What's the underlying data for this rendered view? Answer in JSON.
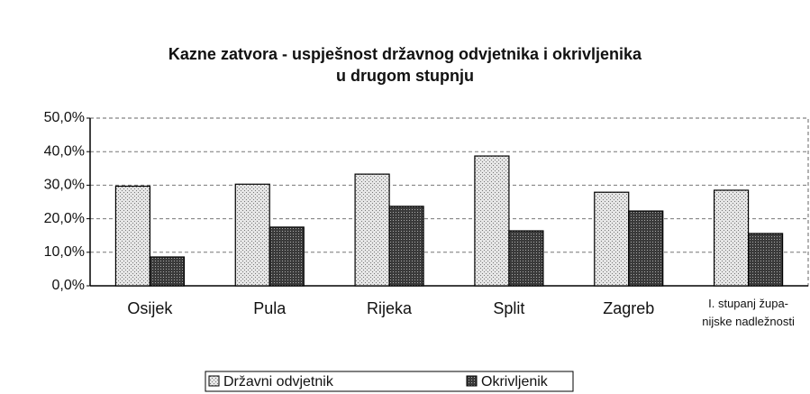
{
  "chart_data": {
    "type": "bar",
    "title": "Kazne zatvora - uspješnost državnog odvjetnika i okrivljenika\nu drugom stupnju",
    "categories": [
      "Osijek",
      "Pula",
      "Rijeka",
      "Split",
      "Zagreb",
      "I. stupanj župa-\nnijske nadležnosti"
    ],
    "series": [
      {
        "name": "Državni odvjetnik",
        "color": "#e6e6e6",
        "values": [
          29.7,
          30.3,
          33.3,
          38.7,
          27.9,
          28.5
        ]
      },
      {
        "name": "Okrivljenik",
        "color": "#3a3a3a",
        "values": [
          8.6,
          17.5,
          23.7,
          16.4,
          22.3,
          15.6
        ]
      }
    ],
    "ylim": [
      0,
      50
    ],
    "yticks": [
      {
        "value": 0,
        "label": "0,0%"
      },
      {
        "value": 10,
        "label": "10,0%"
      },
      {
        "value": 20,
        "label": "20,0%"
      },
      {
        "value": 30,
        "label": "30,0%"
      },
      {
        "value": 40,
        "label": "40,0%"
      },
      {
        "value": 50,
        "label": "50,0%"
      }
    ],
    "grid": true,
    "legend": "bottom"
  }
}
